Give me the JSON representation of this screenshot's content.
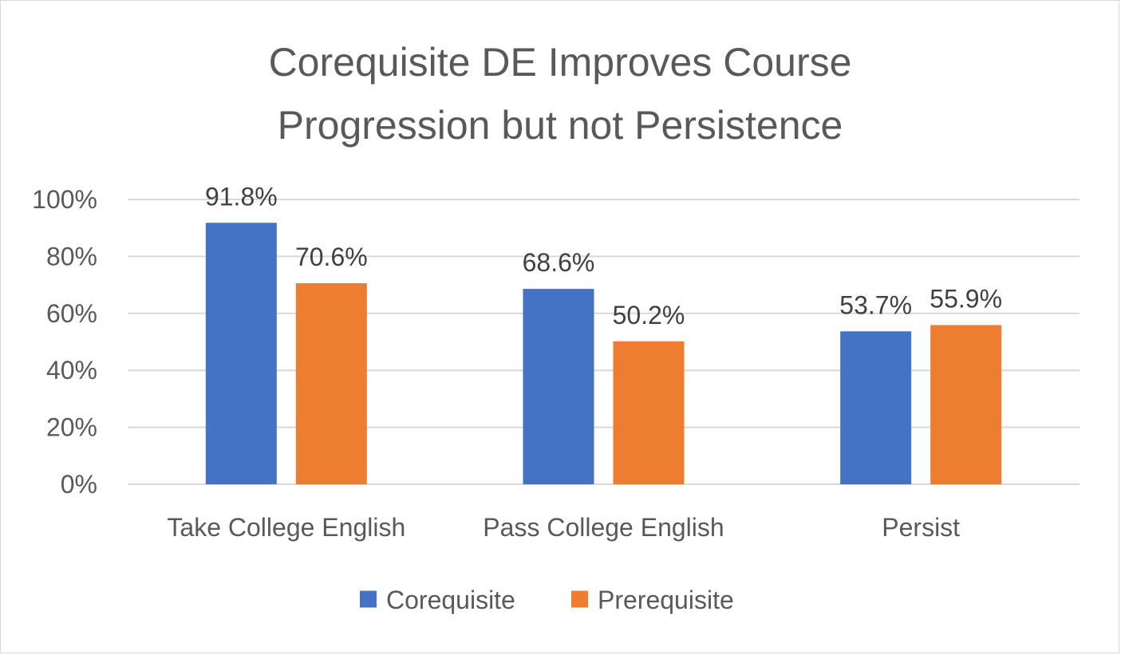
{
  "chart_data": {
    "type": "bar",
    "title_lines": [
      "Corequisite DE Improves Course",
      "Progression but not Persistence"
    ],
    "categories": [
      "Take College English",
      "Pass College English",
      "Persist"
    ],
    "series": [
      {
        "name": "Corequisite",
        "color": "#4472C4",
        "values": [
          91.8,
          68.6,
          53.7
        ],
        "labels": [
          "91.8%",
          "68.6%",
          "53.7%"
        ]
      },
      {
        "name": "Prerequisite",
        "color": "#ED7D31",
        "values": [
          70.6,
          50.2,
          55.9
        ],
        "labels": [
          "70.6%",
          "50.2%",
          "55.9%"
        ]
      }
    ],
    "y_ticks": [
      0,
      20,
      40,
      60,
      80,
      100
    ],
    "y_tick_labels": [
      "0%",
      "20%",
      "40%",
      "60%",
      "80%",
      "100%"
    ],
    "ylim": [
      0,
      100
    ],
    "grid": true,
    "gridline_color": "#d9d9d9",
    "legend_position": "bottom",
    "xlabel": "",
    "ylabel": ""
  }
}
